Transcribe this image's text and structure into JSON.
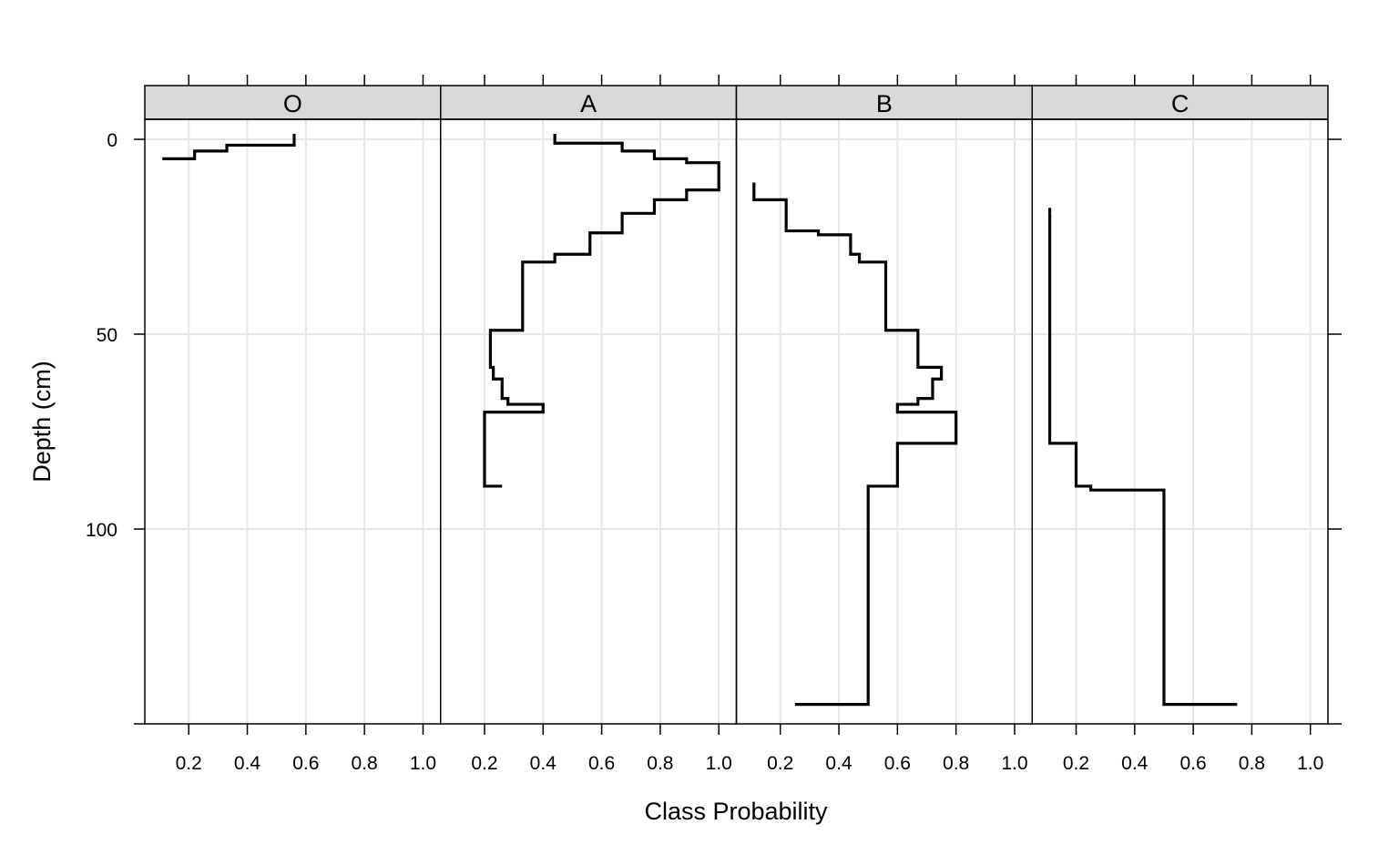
{
  "chart_data": {
    "type": "line",
    "xlabel": "Class Probability",
    "ylabel": "Depth (cm)",
    "xlim": [
      0.05,
      1.06
    ],
    "ylim": [
      150,
      -5
    ],
    "x_ticks": [
      0.2,
      0.4,
      0.6,
      0.8,
      1.0
    ],
    "x_tick_labels": [
      "0.2",
      "0.4",
      "0.6",
      "0.8",
      "1.0"
    ],
    "y_ticks": [
      0,
      50,
      100
    ],
    "y_tick_labels": [
      "0",
      "50",
      "100"
    ],
    "grid": true,
    "panels": [
      {
        "label": "O",
        "values": [
          0.56,
          0.33,
          0.22,
          0.11
        ],
        "depths": [
          0,
          1.5,
          3,
          5
        ]
      },
      {
        "label": "A",
        "values": [
          0.44,
          0.67,
          0.78,
          0.89,
          1.0,
          0.89,
          0.78,
          0.67,
          0.56,
          0.44,
          0.33,
          0.22,
          0.23,
          0.26,
          0.28,
          0.4,
          0.2,
          0.26
        ],
        "depths": [
          0,
          1,
          3,
          5,
          6,
          13,
          15.5,
          19,
          24,
          29.5,
          31.5,
          49,
          58.5,
          61.5,
          66.5,
          68,
          70,
          89
        ]
      },
      {
        "label": "B",
        "values": [
          0.11,
          0.22,
          0.33,
          0.44,
          0.47,
          0.56,
          0.67,
          0.75,
          0.72,
          0.67,
          0.6,
          0.8,
          0.6,
          0.5,
          0.25
        ],
        "depths": [
          12.5,
          15.5,
          23.5,
          24.5,
          29.5,
          31.5,
          49,
          58.5,
          61.5,
          66.5,
          68,
          70,
          78,
          89,
          145
        ]
      },
      {
        "label": "C",
        "values": [
          0.11,
          0.2,
          0.25,
          0.5,
          0.75
        ],
        "depths": [
          19,
          78,
          89,
          90,
          145
        ]
      }
    ],
    "panel_range_depth": 150
  }
}
